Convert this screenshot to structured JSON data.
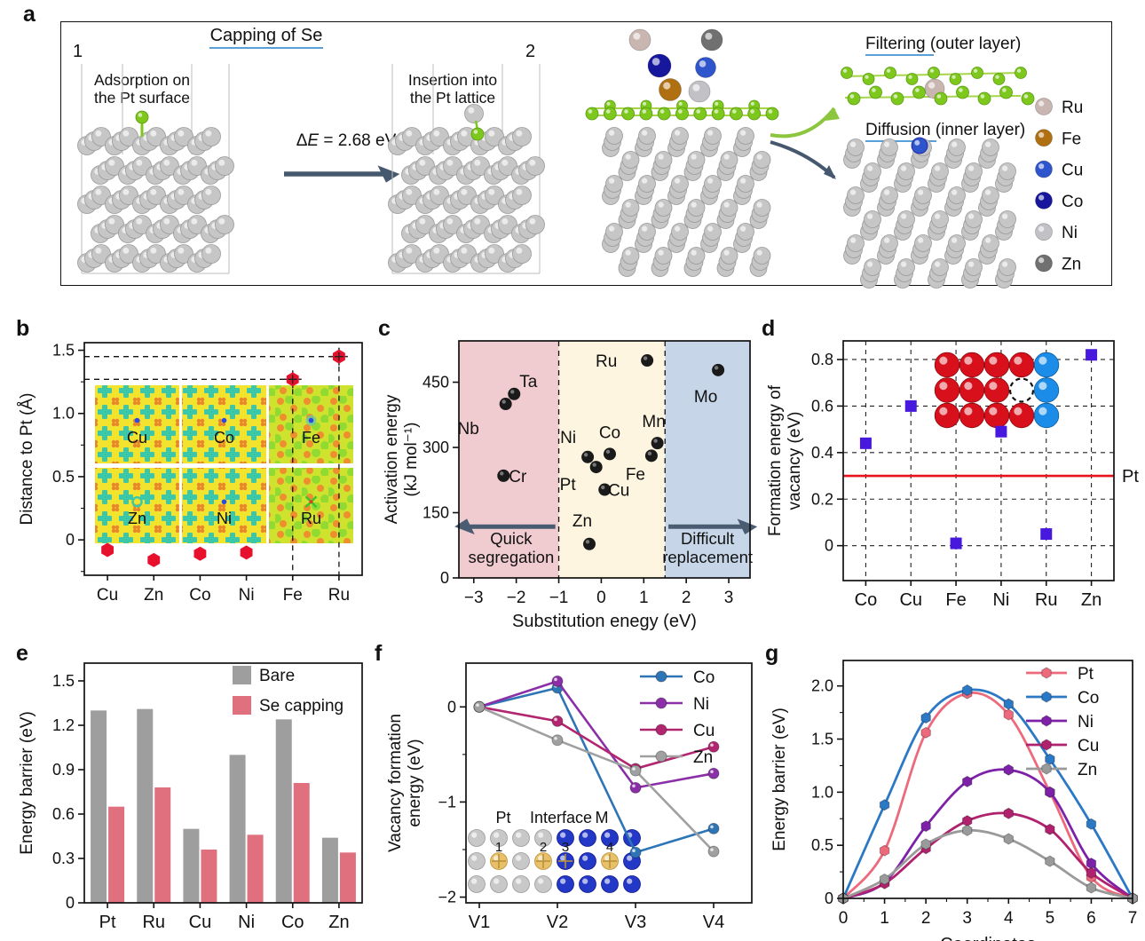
{
  "panels": {
    "a": "a",
    "b": "b",
    "c": "c",
    "d": "d",
    "e": "e",
    "f": "f",
    "g": "g"
  },
  "panel_a": {
    "step1": {
      "index": "1",
      "title": "Capping of Se",
      "annotation_left": [
        "Adsorption on",
        "the Pt surface"
      ],
      "energy": "ΔE = 2.68 eV",
      "annotation_right": [
        "Insertion into",
        "the Pt lattice"
      ]
    },
    "step2": {
      "index": "2",
      "filtering_head": "Filtering",
      "filtering_tail": " (outer layer)",
      "diffusion_head": "Diffusion",
      "diffusion_tail": " (inner layer)"
    },
    "legend": [
      {
        "label": "Ru",
        "color": "#c9b6b0"
      },
      {
        "label": "Fe",
        "color": "#b06f10"
      },
      {
        "label": "Cu",
        "color": "#2e55cc"
      },
      {
        "label": "Co",
        "color": "#17179e"
      },
      {
        "label": "Ni",
        "color": "#c2c2c6"
      },
      {
        "label": "Zn",
        "color": "#707070"
      }
    ],
    "colors": {
      "accent_blue": "#2d7dc2",
      "accent_red": "#e8111c",
      "arrow": "#46586e",
      "pt_atom": "#c6c6c6",
      "se_atom": "#7ec81e"
    }
  },
  "chart_data": [
    {
      "panel": "b",
      "type": "scatter",
      "ylabel": "Distance to Pt (Å)",
      "categories": [
        "Cu",
        "Zn",
        "Co",
        "Ni",
        "Fe",
        "Ru"
      ],
      "values": [
        -0.08,
        -0.16,
        -0.11,
        -0.1,
        1.27,
        1.45
      ],
      "ylim": [
        -0.28,
        1.56
      ],
      "yticks": [
        0,
        0.5,
        1.0,
        1.5
      ],
      "marker": {
        "shape": "hexagon",
        "color": "#e8112d"
      },
      "guides": {
        "horizontal_at": [
          1.27,
          1.45
        ],
        "vertical_categories": [
          "Fe",
          "Ru"
        ]
      },
      "inset_maps": {
        "rows": [
          [
            "Cu",
            "Co",
            "Fe"
          ],
          [
            "Zn",
            "Ni",
            "Ru"
          ]
        ]
      }
    },
    {
      "panel": "c",
      "type": "scatter",
      "xlabel": "Substitution enegy (eV)",
      "ylabel": [
        "Activation energy",
        "(kJ mol⁻¹)"
      ],
      "xlim": [
        -3.35,
        3.5
      ],
      "ylim": [
        0,
        545
      ],
      "xticks": [
        -3,
        -2,
        -1,
        0,
        1,
        2,
        3
      ],
      "yticks": [
        0,
        150,
        300,
        450
      ],
      "regions": [
        {
          "from": -3.35,
          "to": -1,
          "color": "#f0ccd1"
        },
        {
          "from": -1,
          "to": 1.5,
          "color": "#fdf5df"
        },
        {
          "from": 1.5,
          "to": 3.5,
          "color": "#c6d6e8"
        }
      ],
      "boundaries": [
        -1,
        1.5
      ],
      "arrow_labels": {
        "left": [
          "Quick",
          "segregation"
        ],
        "right": [
          "Difficult",
          "replacement"
        ]
      },
      "points": [
        {
          "label": "Nb",
          "x": -2.25,
          "y": 400,
          "color": "#1a1a1a",
          "offset": [
            -42,
            34
          ]
        },
        {
          "label": "Ta",
          "x": -2.05,
          "y": 423,
          "color": "#1a1a1a",
          "offset": [
            16,
            -8
          ]
        },
        {
          "label": "Cr",
          "x": -2.3,
          "y": 235,
          "color": "#1a1a1a",
          "offset": [
            16,
            7
          ]
        },
        {
          "label": "Ni",
          "x": -0.32,
          "y": 278,
          "color": "#e8112d",
          "offset": [
            -22,
            -16
          ]
        },
        {
          "label": "Pt",
          "x": -0.12,
          "y": 255,
          "color": "#e8112d",
          "offset": [
            -32,
            26
          ]
        },
        {
          "label": "Co",
          "x": 0.2,
          "y": 285,
          "color": "#e8112d",
          "offset": [
            0,
            -18
          ]
        },
        {
          "label": "Cu",
          "x": 0.08,
          "y": 203,
          "color": "#e8112d",
          "offset": [
            16,
            7
          ]
        },
        {
          "label": "Zn",
          "x": -0.28,
          "y": 78,
          "color": "#e8112d",
          "offset": [
            -8,
            -20
          ]
        },
        {
          "label": "Fe",
          "x": 1.18,
          "y": 281,
          "color": "#e8112d",
          "offset": [
            -18,
            27
          ]
        },
        {
          "label": "Mn",
          "x": 1.32,
          "y": 310,
          "color": "#1a1a1a",
          "offset": [
            -4,
            -18
          ]
        },
        {
          "label": "Ru",
          "x": 1.08,
          "y": 500,
          "color": "#e8112d",
          "offset": [
            -46,
            7
          ]
        },
        {
          "label": "Mo",
          "x": 2.75,
          "y": 478,
          "color": "#1a1a1a",
          "offset": [
            -14,
            36
          ]
        }
      ]
    },
    {
      "panel": "d",
      "type": "scatter",
      "ylabel": [
        "Formation energy of",
        "vacancy (eV)"
      ],
      "categories": [
        "Co",
        "Cu",
        "Fe",
        "Ni",
        "Ru",
        "Zn"
      ],
      "values": [
        0.44,
        0.6,
        0.01,
        0.49,
        0.05,
        0.82
      ],
      "ylim": [
        -0.15,
        0.88
      ],
      "yticks": [
        0,
        0.2,
        0.4,
        0.6,
        0.8
      ],
      "marker": {
        "shape": "square",
        "color": "#4718dd"
      },
      "reference_line": {
        "value": 0.3,
        "label": "Pt",
        "color": "#e8111c"
      }
    },
    {
      "panel": "e",
      "type": "bar",
      "ylabel": "Energy barrier (eV)",
      "categories": [
        "Pt",
        "Ru",
        "Cu",
        "Ni",
        "Co",
        "Zn"
      ],
      "series": [
        {
          "name": "Bare",
          "color": "#9e9e9e",
          "values": [
            1.3,
            1.31,
            0.5,
            1.0,
            1.24,
            0.44
          ]
        },
        {
          "name": "Se capping",
          "color": "#e0707e",
          "values": [
            0.65,
            0.78,
            0.36,
            0.46,
            0.81,
            0.34
          ]
        }
      ],
      "ylim": [
        0,
        1.62
      ],
      "yticks": [
        0,
        0.3,
        0.6,
        0.9,
        1.2,
        1.5
      ]
    },
    {
      "panel": "f",
      "type": "line",
      "ylabel": [
        "Vacancy formation",
        "energy (eV)"
      ],
      "categories": [
        "V1",
        "V2",
        "V3",
        "V4"
      ],
      "series": [
        {
          "name": "Co",
          "color": "#2e75b6",
          "values": [
            0,
            0.2,
            -1.53,
            -1.28
          ]
        },
        {
          "name": "Ni",
          "color": "#8b2fa8",
          "values": [
            0,
            0.27,
            -0.85,
            -0.7
          ]
        },
        {
          "name": "Cu",
          "color": "#b22670",
          "values": [
            0,
            -0.15,
            -0.65,
            -0.42
          ]
        },
        {
          "name": "Zn",
          "color": "#a0a0a0",
          "values": [
            0,
            -0.35,
            -0.67,
            -1.52
          ]
        }
      ],
      "ylim": [
        -2.06,
        0.46
      ],
      "yticks": [
        0,
        -1,
        -2
      ],
      "inset": {
        "labels": [
          {
            "text": "Pt",
            "color": "#44546a"
          },
          {
            "text": "Interface",
            "color": "#e8112d"
          },
          {
            "text": "M",
            "color": "#2323d4"
          }
        ],
        "site_numbers": [
          "1",
          "2",
          "3",
          "4"
        ]
      }
    },
    {
      "panel": "g",
      "type": "line",
      "xlabel": "Coordinates",
      "ylabel": "Energy barrier (eV)",
      "x": [
        0,
        1,
        2,
        3,
        4,
        5,
        6,
        7
      ],
      "series": [
        {
          "name": "Pt",
          "color": "#ed6a7c",
          "values": [
            0,
            0.45,
            1.56,
            1.93,
            1.73,
            1.0,
            0.2,
            0
          ]
        },
        {
          "name": "Co",
          "color": "#2b78c5",
          "values": [
            0,
            0.88,
            1.7,
            1.96,
            1.83,
            1.31,
            0.7,
            0
          ]
        },
        {
          "name": "Ni",
          "color": "#7d22a8",
          "values": [
            0,
            0.15,
            0.68,
            1.1,
            1.21,
            1.0,
            0.33,
            0
          ]
        },
        {
          "name": "Cu",
          "color": "#b0216e",
          "values": [
            0,
            0.14,
            0.47,
            0.73,
            0.8,
            0.65,
            0.24,
            0
          ]
        },
        {
          "name": "Zn",
          "color": "#9a9a9a",
          "values": [
            0,
            0.18,
            0.51,
            0.64,
            0.56,
            0.35,
            0.1,
            0
          ]
        }
      ],
      "ylim": [
        0,
        2.24
      ],
      "yticks": [
        0,
        0.5,
        1.0,
        1.5,
        2.0
      ],
      "xticks": [
        0,
        1,
        2,
        3,
        4,
        5,
        6,
        7
      ]
    }
  ]
}
